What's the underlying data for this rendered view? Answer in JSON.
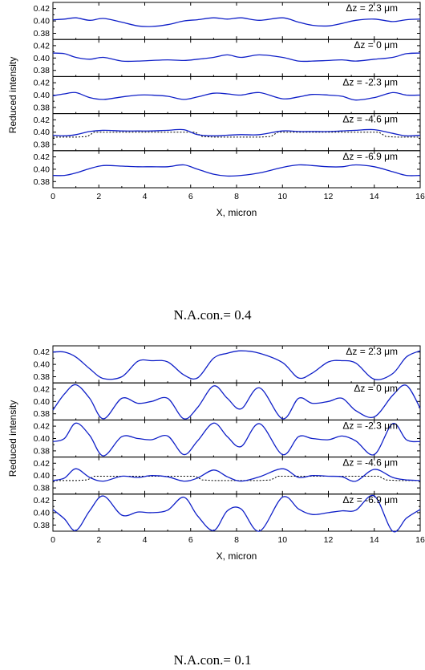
{
  "chart_data": [
    {
      "type": "line",
      "caption": "N.A.con.= 0.4",
      "xlabel": "X, micron",
      "ylabel": "Reduced intensity",
      "xlim": [
        0,
        16
      ],
      "ylim": [
        0.37,
        0.43
      ],
      "x_ticks": [
        "0",
        "2",
        "4",
        "6",
        "8",
        "10",
        "12",
        "14",
        "16"
      ],
      "y_ticks": [
        "0.38",
        "0.40",
        "0.42"
      ],
      "line_color": "#1020c8",
      "reference_color": "#000000",
      "panels": [
        {
          "label": "Δz = 2.3 μm",
          "x": [
            0,
            0.5,
            1,
            1.6,
            2.2,
            3,
            3.7,
            4.3,
            5,
            5.7,
            6.3,
            7,
            7.6,
            8.2,
            9,
            10,
            10.7,
            11.3,
            12,
            12.6,
            13.2,
            14,
            14.8,
            15.4,
            16
          ],
          "y": [
            0.402,
            0.403,
            0.405,
            0.401,
            0.404,
            0.398,
            0.392,
            0.391,
            0.394,
            0.4,
            0.402,
            0.405,
            0.403,
            0.405,
            0.401,
            0.405,
            0.398,
            0.393,
            0.392,
            0.396,
            0.401,
            0.403,
            0.399,
            0.402,
            0.403
          ]
        },
        {
          "label": "Δz = 0 μm",
          "x": [
            0,
            0.5,
            1,
            1.6,
            2.2,
            3,
            3.7,
            4.3,
            5,
            5.7,
            6.3,
            7,
            7.6,
            8.2,
            9,
            10,
            10.7,
            11.3,
            12,
            12.6,
            13.2,
            14,
            14.8,
            15.4,
            16
          ],
          "y": [
            0.408,
            0.407,
            0.401,
            0.398,
            0.401,
            0.395,
            0.395,
            0.396,
            0.397,
            0.396,
            0.398,
            0.401,
            0.405,
            0.401,
            0.405,
            0.401,
            0.395,
            0.395,
            0.396,
            0.397,
            0.395,
            0.398,
            0.401,
            0.407,
            0.408
          ]
        },
        {
          "label": "Δz = -2.3 μm",
          "x": [
            0,
            0.5,
            1,
            1.6,
            2.2,
            3,
            3.7,
            4.3,
            5,
            5.7,
            6.3,
            7,
            7.6,
            8.2,
            9,
            10,
            10.7,
            11.3,
            12,
            12.6,
            13.2,
            14,
            14.8,
            15.4,
            16
          ],
          "y": [
            0.399,
            0.402,
            0.404,
            0.396,
            0.393,
            0.397,
            0.4,
            0.4,
            0.398,
            0.393,
            0.397,
            0.403,
            0.402,
            0.4,
            0.404,
            0.394,
            0.397,
            0.401,
            0.4,
            0.398,
            0.392,
            0.396,
            0.404,
            0.4,
            0.4
          ]
        },
        {
          "label": "Δz = -4.6 μm",
          "x": [
            0,
            0.5,
            1,
            1.6,
            2.2,
            3,
            3.7,
            4.3,
            5,
            5.7,
            6.3,
            7,
            7.6,
            8.2,
            9,
            10,
            10.7,
            11.3,
            12,
            12.6,
            13.2,
            14,
            14.8,
            15.4,
            16
          ],
          "y": [
            0.395,
            0.394,
            0.396,
            0.401,
            0.403,
            0.402,
            0.402,
            0.402,
            0.403,
            0.404,
            0.396,
            0.394,
            0.395,
            0.396,
            0.396,
            0.402,
            0.401,
            0.401,
            0.401,
            0.402,
            0.403,
            0.404,
            0.398,
            0.394,
            0.395
          ],
          "reference": {
            "x": [
              0,
              0.5,
              1,
              1.5,
              1.8,
              2.5,
              4,
              5.5,
              6.2,
              6.5,
              7,
              8,
              9,
              9.5,
              9.8,
              10.5,
              12,
              13.5,
              14.2,
              14.5,
              15,
              16
            ],
            "y": [
              0.392,
              0.392,
              0.392,
              0.393,
              0.4,
              0.4,
              0.4,
              0.4,
              0.4,
              0.393,
              0.392,
              0.392,
              0.392,
              0.393,
              0.4,
              0.4,
              0.4,
              0.4,
              0.4,
              0.393,
              0.392,
              0.392
            ]
          }
        },
        {
          "label": "Δz = -6.9 μm",
          "x": [
            0,
            0.5,
            1,
            1.6,
            2.2,
            3,
            3.7,
            4.3,
            5,
            5.7,
            6.3,
            7,
            7.6,
            8.2,
            9,
            10,
            10.7,
            11.3,
            12,
            12.6,
            13.2,
            14,
            14.8,
            15.4,
            16
          ],
          "y": [
            0.39,
            0.39,
            0.394,
            0.401,
            0.406,
            0.405,
            0.404,
            0.404,
            0.404,
            0.407,
            0.4,
            0.392,
            0.389,
            0.39,
            0.394,
            0.403,
            0.407,
            0.406,
            0.404,
            0.404,
            0.407,
            0.404,
            0.396,
            0.39,
            0.39
          ]
        }
      ]
    },
    {
      "type": "line",
      "caption": "N.A.con.= 0.1",
      "xlabel": "X, micron",
      "ylabel": "Reduced intensity",
      "xlim": [
        0,
        16
      ],
      "ylim": [
        0.37,
        0.43
      ],
      "x_ticks": [
        "0",
        "2",
        "4",
        "6",
        "8",
        "10",
        "12",
        "14",
        "16"
      ],
      "y_ticks": [
        "0.38",
        "0.40",
        "0.42"
      ],
      "line_color": "#1020c8",
      "reference_color": "#000000",
      "panels": [
        {
          "label": "Δz = 2.3 μm",
          "x": [
            0,
            0.5,
            1,
            1.6,
            2.2,
            3,
            3.7,
            4.3,
            5,
            5.7,
            6.3,
            7,
            7.6,
            8.2,
            9,
            10,
            10.7,
            11.3,
            12,
            12.6,
            13.2,
            14,
            14.8,
            15.4,
            16
          ],
          "y": [
            0.42,
            0.42,
            0.412,
            0.393,
            0.377,
            0.38,
            0.405,
            0.406,
            0.404,
            0.383,
            0.378,
            0.41,
            0.418,
            0.422,
            0.418,
            0.403,
            0.378,
            0.386,
            0.404,
            0.406,
            0.402,
            0.376,
            0.385,
            0.412,
            0.422
          ]
        },
        {
          "label": "Δz = 0 μm",
          "x": [
            0,
            0.5,
            1,
            1.6,
            2.2,
            3,
            3.7,
            4.3,
            5,
            5.7,
            6.3,
            7,
            7.6,
            8.2,
            9,
            10,
            10.7,
            11.3,
            12,
            12.6,
            13.2,
            14,
            14.8,
            15.4,
            16
          ],
          "y": [
            0.386,
            0.412,
            0.427,
            0.405,
            0.372,
            0.405,
            0.397,
            0.4,
            0.405,
            0.372,
            0.39,
            0.425,
            0.405,
            0.388,
            0.422,
            0.372,
            0.405,
            0.397,
            0.4,
            0.405,
            0.385,
            0.375,
            0.41,
            0.426,
            0.389
          ]
        },
        {
          "label": "Δz = -2.3 μm",
          "x": [
            0,
            0.5,
            1,
            1.6,
            2.2,
            3,
            3.7,
            4.3,
            5,
            5.7,
            6.3,
            7,
            7.6,
            8.2,
            9,
            10,
            10.7,
            11.3,
            12,
            12.6,
            13.2,
            14,
            14.8,
            15.4,
            16
          ],
          "y": [
            0.395,
            0.4,
            0.425,
            0.405,
            0.372,
            0.403,
            0.4,
            0.398,
            0.404,
            0.374,
            0.396,
            0.425,
            0.403,
            0.387,
            0.424,
            0.374,
            0.403,
            0.4,
            0.398,
            0.404,
            0.396,
            0.374,
            0.424,
            0.398,
            0.395
          ]
        },
        {
          "label": "Δz = -4.6 μm",
          "x": [
            0,
            0.5,
            1,
            1.6,
            2.2,
            3,
            3.7,
            4.3,
            5,
            5.7,
            6.3,
            7,
            7.6,
            8.2,
            9,
            10,
            10.7,
            11.3,
            12,
            12.6,
            13.2,
            14,
            14.8,
            15.4,
            16
          ],
          "y": [
            0.392,
            0.396,
            0.411,
            0.397,
            0.391,
            0.399,
            0.397,
            0.4,
            0.398,
            0.391,
            0.396,
            0.409,
            0.398,
            0.391,
            0.398,
            0.411,
            0.397,
            0.4,
            0.399,
            0.398,
            0.391,
            0.41,
            0.397,
            0.393,
            0.392
          ],
          "reference": {
            "x": [
              0,
              0.5,
              1,
              1.5,
              1.8,
              2.5,
              4,
              5.5,
              6.2,
              6.5,
              7,
              8,
              9,
              9.5,
              9.8,
              10.5,
              12,
              13.5,
              14.2,
              14.5,
              15,
              16
            ],
            "y": [
              0.392,
              0.392,
              0.392,
              0.393,
              0.399,
              0.399,
              0.399,
              0.399,
              0.399,
              0.393,
              0.392,
              0.392,
              0.392,
              0.393,
              0.399,
              0.399,
              0.399,
              0.399,
              0.399,
              0.393,
              0.392,
              0.392
            ]
          }
        },
        {
          "label": "Δz = -6.9 μm",
          "x": [
            0,
            0.5,
            1,
            1.6,
            2.2,
            3,
            3.7,
            4.3,
            5,
            5.7,
            6.3,
            7,
            7.6,
            8.2,
            9,
            10,
            10.7,
            11.3,
            12,
            12.6,
            13.2,
            14,
            14.8,
            15.4,
            16
          ],
          "y": [
            0.405,
            0.39,
            0.371,
            0.403,
            0.427,
            0.396,
            0.401,
            0.4,
            0.404,
            0.425,
            0.395,
            0.371,
            0.403,
            0.406,
            0.37,
            0.425,
            0.406,
            0.397,
            0.4,
            0.403,
            0.404,
            0.427,
            0.37,
            0.391,
            0.405
          ]
        }
      ]
    }
  ]
}
